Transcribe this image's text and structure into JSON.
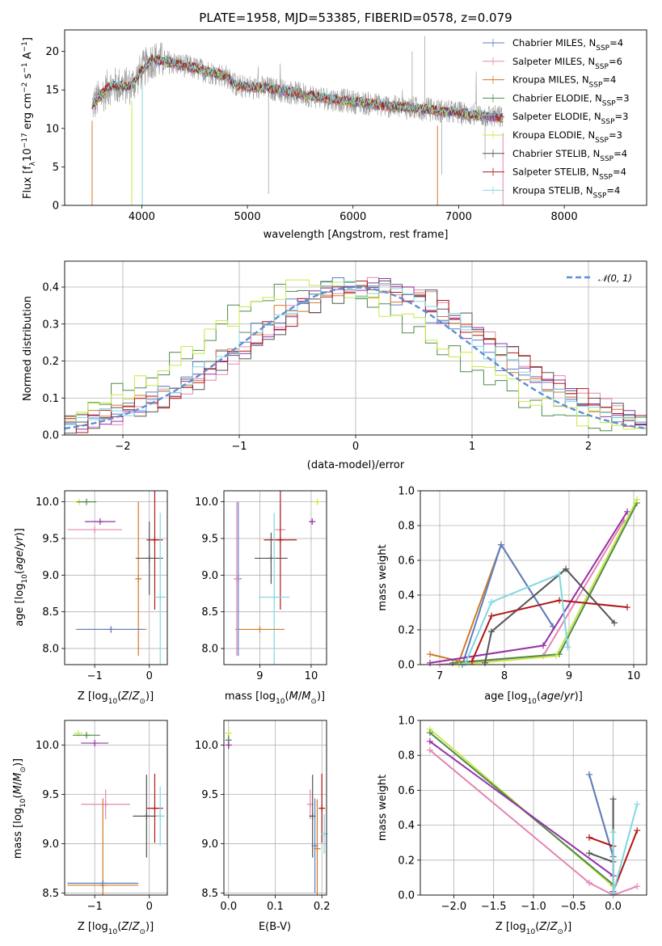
{
  "figure": {
    "title": "PLATE=1958, MJD=53385, FIBERID=0578, z=0.079"
  },
  "colors": {
    "Chabrier MILES": "#5b7fc4",
    "Salpeter MILES": "#e486b4",
    "Kroupa MILES": "#d17a2a",
    "Chabrier ELODIE": "#4f8a4a",
    "Salpeter ELODIE": "#9630a8",
    "Kroupa ELODIE": "#c8e84a",
    "Chabrier STELIB": "#555555",
    "Salpeter STELIB": "#b01818",
    "Kroupa STELIB": "#80d8e0",
    "gaussian": "#5b8fd6"
  },
  "chart_data": [
    {
      "id": "spectrum",
      "type": "line",
      "title": "PLATE=1958, MJD=53385, FIBERID=0578, z=0.079",
      "xlabel": "wavelength [Angstrom, rest frame]",
      "ylabel": "Flux [f",
      "ylabel_full": "Flux [fλ10−17 erg cm−2 s−1 A−1]",
      "xlim": [
        3270,
        8780
      ],
      "ylim": [
        0,
        22.8
      ],
      "xticks": [
        "4000",
        "5000",
        "6000",
        "7000",
        "8000"
      ],
      "yticks": [
        "0",
        "5",
        "10",
        "15",
        "20"
      ],
      "legend": [
        {
          "name": "Chabrier MILES",
          "nssp": "4"
        },
        {
          "name": "Salpeter MILES",
          "nssp": "6"
        },
        {
          "name": "Kroupa MILES",
          "nssp": "4"
        },
        {
          "name": "Chabrier ELODIE",
          "nssp": "3"
        },
        {
          "name": "Salpeter ELODIE",
          "nssp": "3"
        },
        {
          "name": "Kroupa ELODIE",
          "nssp": "3"
        },
        {
          "name": "Chabrier STELIB",
          "nssp": "4"
        },
        {
          "name": "Salpeter STELIB",
          "nssp": "4"
        },
        {
          "name": "Kroupa STELIB",
          "nssp": "4"
        }
      ],
      "legend_position": "right",
      "continuum": {
        "x": [
          3530,
          3700,
          3900,
          4000,
          4100,
          4300,
          4500,
          4800,
          4900,
          5200,
          5500,
          5800,
          6100,
          6400,
          6700,
          7000,
          7200,
          7420
        ],
        "y": [
          13.0,
          15.5,
          15.5,
          17.5,
          19.0,
          18.5,
          17.8,
          16.8,
          15.5,
          15.2,
          14.5,
          13.8,
          13.3,
          12.8,
          12.5,
          12.0,
          11.7,
          11.4
        ]
      }
    },
    {
      "id": "residuals",
      "type": "line",
      "xlabel": "(data-model)/error",
      "ylabel": "Normed distribution",
      "xlim": [
        -2.5,
        2.5
      ],
      "ylim": [
        0,
        0.47
      ],
      "xticks": [
        "−2",
        "−1",
        "0",
        "1",
        "2"
      ],
      "yticks": [
        "0.0",
        "0.1",
        "0.2",
        "0.3",
        "0.4"
      ],
      "legend": "𝒩(0, 1)"
    },
    {
      "id": "age-vs-Z",
      "type": "scatter",
      "xlabel": "Z [log",
      "ylabel": "age  [log",
      "xlim": [
        -1.55,
        0.33
      ],
      "ylim": [
        7.78,
        10.15
      ],
      "xticks": [
        "−1",
        "0"
      ],
      "yticks": [
        "8.0",
        "8.5",
        "9.0",
        "9.5",
        "10.0"
      ],
      "points": [
        {
          "c": "Kroupa ELODIE",
          "x": -1.28,
          "y": 10.0,
          "ex": 0.12
        },
        {
          "c": "Chabrier ELODIE",
          "x": -1.15,
          "y": 10.0,
          "ex": 0.18
        },
        {
          "c": "Salpeter ELODIE",
          "x": -0.9,
          "y": 9.73,
          "ex": 0.28
        },
        {
          "c": "Salpeter MILES",
          "x": -1.0,
          "y": 9.62,
          "ex": 0.5
        },
        {
          "c": "Kroupa MILES",
          "x": -0.2,
          "y": 8.95,
          "ey": 1.05
        },
        {
          "c": "Chabrier STELIB",
          "x": 0.0,
          "y": 9.23,
          "ex": 0.25,
          "ey": 0.5
        },
        {
          "c": "Salpeter STELIB",
          "x": 0.1,
          "y": 9.48,
          "ex": 0.15,
          "ey": 0.95
        },
        {
          "c": "Kroupa STELIB",
          "x": 0.2,
          "y": 8.7,
          "ex": 0.1,
          "ey": 1.15
        },
        {
          "c": "Kroupa MILES",
          "x": -0.7,
          "y": 8.26,
          "ex": 0.65
        },
        {
          "c": "Chabrier MILES",
          "x": -0.7,
          "y": 8.26,
          "ex": 0.6
        }
      ]
    },
    {
      "id": "age-vs-mass",
      "type": "scatter",
      "xlabel": "mass [log",
      "xlim": [
        8.3,
        10.3
      ],
      "ylim": [
        7.78,
        10.15
      ],
      "xticks": [
        "9",
        "10"
      ],
      "yticks": [
        "8.0",
        "8.5",
        "9.0",
        "9.5",
        "10.0"
      ],
      "points": [
        {
          "c": "Kroupa ELODIE",
          "x": 10.12,
          "y": 10.0,
          "ex": 0.04
        },
        {
          "c": "Salpeter ELODIE",
          "x": 10.02,
          "y": 9.73,
          "ex": 0.03
        },
        {
          "c": "Salpeter MILES",
          "x": 9.4,
          "y": 9.62,
          "ex": 0.1,
          "ey": 0.35
        },
        {
          "c": "Salpeter STELIB",
          "x": 9.4,
          "y": 9.48,
          "ex": 0.32,
          "ey": 0.95
        },
        {
          "c": "Chabrier STELIB",
          "x": 9.22,
          "y": 9.23,
          "ex": 0.32,
          "ey": 0.35
        },
        {
          "c": "Kroupa STELIB",
          "x": 9.28,
          "y": 8.7,
          "ex": 0.3,
          "ey": 1.15
        },
        {
          "c": "Kroupa MILES",
          "x": 9.0,
          "y": 8.26,
          "ex": 0.48
        },
        {
          "c": "Chabrier MILES",
          "x": 8.58,
          "y": 8.95,
          "ey": 1.05
        },
        {
          "c": "Salpeter MILES",
          "x": 8.55,
          "y": 8.95,
          "ey": 1.05
        }
      ]
    },
    {
      "id": "weight-vs-age",
      "type": "line",
      "xlabel": "age  [log",
      "ylabel": "mass weight",
      "xlim": [
        6.7,
        10.2
      ],
      "ylim": [
        0,
        1.0
      ],
      "xticks": [
        "7",
        "8",
        "9",
        "10"
      ],
      "yticks": [
        "0.0",
        "0.2",
        "0.4",
        "0.6",
        "0.8",
        "1.0"
      ],
      "series": [
        {
          "c": "Kroupa MILES",
          "x": [
            6.85,
            7.3,
            7.95,
            8.75
          ],
          "y": [
            0.06,
            0.02,
            0.69,
            0.22
          ]
        },
        {
          "c": "Chabrier MILES",
          "x": [
            7.35,
            7.95,
            8.75
          ],
          "y": [
            0.0,
            0.69,
            0.22
          ]
        },
        {
          "c": "Salpeter MILES",
          "x": [
            7.0,
            8.6,
            9.85
          ],
          "y": [
            0.0,
            0.05,
            0.83
          ]
        },
        {
          "c": "Chabrier ELODIE",
          "x": [
            7.2,
            8.85,
            10.05
          ],
          "y": [
            0.01,
            0.06,
            0.93
          ]
        },
        {
          "c": "Salpeter ELODIE",
          "x": [
            6.85,
            8.6,
            9.9
          ],
          "y": [
            0.01,
            0.11,
            0.88
          ]
        },
        {
          "c": "Kroupa ELODIE",
          "x": [
            7.3,
            8.8,
            10.05
          ],
          "y": [
            0.0,
            0.05,
            0.95
          ]
        },
        {
          "c": "Chabrier STELIB",
          "x": [
            7.7,
            7.8,
            8.95,
            9.7
          ],
          "y": [
            0.01,
            0.19,
            0.55,
            0.24
          ]
        },
        {
          "c": "Salpeter STELIB",
          "x": [
            7.5,
            7.8,
            8.85,
            9.9
          ],
          "y": [
            0.02,
            0.28,
            0.37,
            0.33
          ]
        },
        {
          "c": "Kroupa STELIB",
          "x": [
            7.4,
            7.8,
            8.85,
            8.98
          ],
          "y": [
            0.01,
            0.36,
            0.52,
            0.1
          ]
        }
      ]
    },
    {
      "id": "mass-vs-Z",
      "type": "scatter",
      "xlabel": "Z [log",
      "ylabel": "mass [log",
      "xlim": [
        -1.55,
        0.33
      ],
      "ylim": [
        8.48,
        10.25
      ],
      "xticks": [
        "−1",
        "0"
      ],
      "yticks": [
        "8.5",
        "9.0",
        "9.5",
        "10.0"
      ],
      "points": [
        {
          "c": "Kroupa ELODIE",
          "x": -1.3,
          "y": 10.12,
          "ex": 0.08
        },
        {
          "c": "Chabrier ELODIE",
          "x": -1.15,
          "y": 10.1,
          "ex": 0.25
        },
        {
          "c": "Salpeter ELODIE",
          "x": -1.0,
          "y": 10.02,
          "ex": 0.25
        },
        {
          "c": "Salpeter MILES",
          "x": -0.8,
          "y": 9.4,
          "ex": 0.45,
          "ey": 0.15
        },
        {
          "c": "Chabrier STELIB",
          "x": -0.05,
          "y": 9.28,
          "ex": 0.25,
          "ey": 0.42
        },
        {
          "c": "Salpeter STELIB",
          "x": 0.1,
          "y": 9.36,
          "ex": 0.15,
          "ey": 0.35
        },
        {
          "c": "Kroupa STELIB",
          "x": 0.2,
          "y": 9.28,
          "ex": 0.08,
          "ey": 0.3
        },
        {
          "c": "Kroupa MILES",
          "x": -0.85,
          "y": 8.58,
          "ex": 0.65,
          "ey": 0.88
        },
        {
          "c": "Chabrier MILES",
          "x": -0.85,
          "y": 8.6,
          "ex": 0.65
        }
      ]
    },
    {
      "id": "mass-vs-EBV",
      "type": "scatter",
      "xlabel": "E(B-V)",
      "xlim": [
        -0.01,
        0.21
      ],
      "ylim": [
        8.48,
        10.25
      ],
      "xticks": [
        "0.0",
        "0.1",
        "0.2"
      ],
      "yticks": [
        "8.5",
        "9.0",
        "9.5",
        "10.0"
      ],
      "points": [
        {
          "c": "Kroupa ELODIE",
          "x": 0.0,
          "y": 10.12,
          "ey": 0.05
        },
        {
          "c": "Chabrier ELODIE",
          "x": 0.0,
          "y": 10.05,
          "ey": 0.05
        },
        {
          "c": "Salpeter ELODIE",
          "x": 0.0,
          "y": 10.0,
          "ey": 0.04
        },
        {
          "c": "Salpeter MILES",
          "x": 0.175,
          "y": 9.4,
          "ey": 0.15
        },
        {
          "c": "Chabrier STELIB",
          "x": 0.18,
          "y": 9.28,
          "ey": 0.42
        },
        {
          "c": "Chabrier MILES",
          "x": 0.185,
          "y": 8.98,
          "ey": 0.48
        },
        {
          "c": "Kroupa MILES",
          "x": 0.19,
          "y": 8.95,
          "ey": 0.5
        },
        {
          "c": "Salpeter STELIB",
          "x": 0.2,
          "y": 9.36,
          "ey": 0.35
        },
        {
          "c": "Kroupa STELIB",
          "x": 0.205,
          "y": 9.1,
          "ey": 0.2
        }
      ]
    },
    {
      "id": "weight-vs-Z",
      "type": "line",
      "xlabel": "Z [log",
      "ylabel": "mass weight",
      "xlim": [
        -2.42,
        0.42
      ],
      "ylim": [
        0,
        1.0
      ],
      "xticks": [
        "−2.0",
        "−1.5",
        "−1.0",
        "−0.5",
        "0.0"
      ],
      "yticks": [
        "0.0",
        "0.2",
        "0.4",
        "0.6",
        "0.8",
        "1.0"
      ],
      "series": [
        {
          "c": "Kroupa ELODIE",
          "x": [
            -2.3,
            0.0
          ],
          "y": [
            0.95,
            0.05
          ]
        },
        {
          "c": "Chabrier ELODIE",
          "x": [
            -2.3,
            0.0
          ],
          "y": [
            0.93,
            0.06
          ]
        },
        {
          "c": "Salpeter ELODIE",
          "x": [
            -2.3,
            0.0
          ],
          "y": [
            0.88,
            0.11
          ]
        },
        {
          "c": "Salpeter MILES",
          "x": [
            -2.3,
            -0.3,
            0.0,
            0.3
          ],
          "y": [
            0.83,
            0.07,
            0.0,
            0.05
          ]
        },
        {
          "c": "Kroupa MILES",
          "x": [
            -0.3,
            0.0,
            0.0
          ],
          "y": [
            0.69,
            0.22,
            0.06
          ]
        },
        {
          "c": "Chabrier MILES",
          "x": [
            -0.3,
            0.0
          ],
          "y": [
            0.69,
            0.22
          ]
        },
        {
          "c": "Chabrier STELIB",
          "x": [
            -0.3,
            0.0,
            0.0,
            0.0
          ],
          "y": [
            0.24,
            0.19,
            0.55,
            0.01
          ]
        },
        {
          "c": "Salpeter STELIB",
          "x": [
            -0.3,
            0.0,
            0.0,
            0.3
          ],
          "y": [
            0.33,
            0.28,
            0.02,
            0.37
          ]
        },
        {
          "c": "Kroupa STELIB",
          "x": [
            0.0,
            0.0,
            0.3
          ],
          "y": [
            0.36,
            0.01,
            0.52
          ]
        }
      ]
    }
  ]
}
